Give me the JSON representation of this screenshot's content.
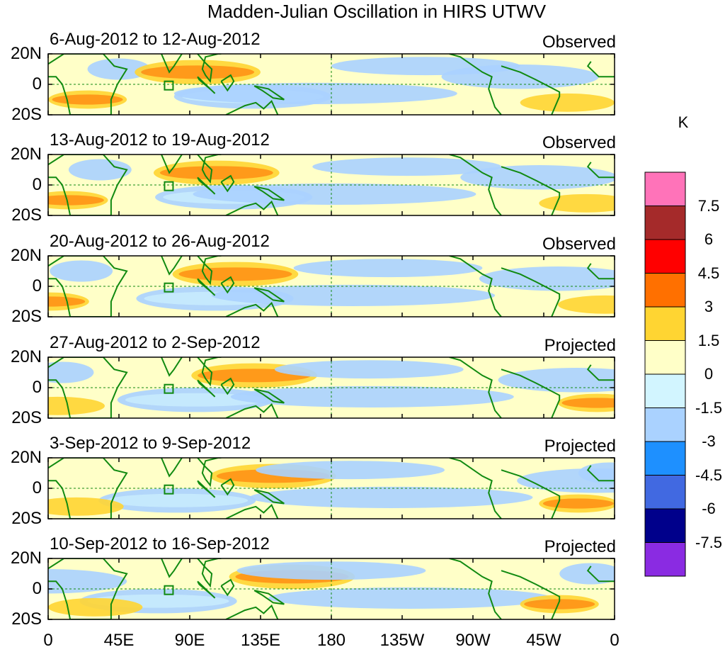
{
  "title": "Madden-Julian Oscillation in HIRS UTWV",
  "colorbar": {
    "unit": "K",
    "labels": [
      "7.5",
      "6",
      "4.5",
      "3",
      "1.5",
      "0",
      "-1.5",
      "-3",
      "-4.5",
      "-6",
      "-7.5"
    ],
    "colors": [
      "#ff73b9",
      "#a52a2a",
      "#ff0000",
      "#ff7000",
      "#ffd532",
      "#ffffc8",
      "#d2f5ff",
      "#aad2ff",
      "#1e90ff",
      "#4169e1",
      "#00008b",
      "#8a2be2"
    ]
  },
  "axes": {
    "lon_labels": [
      "0",
      "45E",
      "90E",
      "135E",
      "180",
      "135W",
      "90W",
      "45W",
      "0"
    ],
    "lat_labels": [
      "20N",
      "0",
      "20S"
    ]
  },
  "panels": [
    {
      "date_range": "6-Aug-2012 to 12-Aug-2012",
      "status": "Observed"
    },
    {
      "date_range": "13-Aug-2012 to 19-Aug-2012",
      "status": "Observed"
    },
    {
      "date_range": "20-Aug-2012 to 26-Aug-2012",
      "status": "Observed"
    },
    {
      "date_range": "27-Aug-2012 to 2-Sep-2012",
      "status": "Projected"
    },
    {
      "date_range": "3-Sep-2012 to 9-Sep-2012",
      "status": "Projected"
    },
    {
      "date_range": "10-Sep-2012 to 16-Sep-2012",
      "status": "Projected"
    }
  ],
  "map_fields": [
    {
      "lon": 130,
      "lat": -8,
      "level": -1,
      "rx": 50,
      "ry": 8
    },
    {
      "lon": 170,
      "lat": -6,
      "level": -1,
      "rx": 90,
      "ry": 7
    },
    {
      "lon": 45,
      "lat": 10,
      "level": -1,
      "rx": 20,
      "ry": 7
    },
    {
      "lon": 95,
      "lat": 8,
      "level": 1,
      "rx": 40,
      "ry": 8
    },
    {
      "lon": 240,
      "lat": 12,
      "level": -1,
      "rx": 60,
      "ry": 6
    },
    {
      "lon": 300,
      "lat": 5,
      "level": -1,
      "rx": 50,
      "ry": 8
    },
    {
      "lon": 25,
      "lat": -10,
      "level": 1,
      "rx": 25,
      "ry": 6
    },
    {
      "lon": 330,
      "lat": -12,
      "level": 1,
      "rx": 30,
      "ry": 6
    }
  ]
}
